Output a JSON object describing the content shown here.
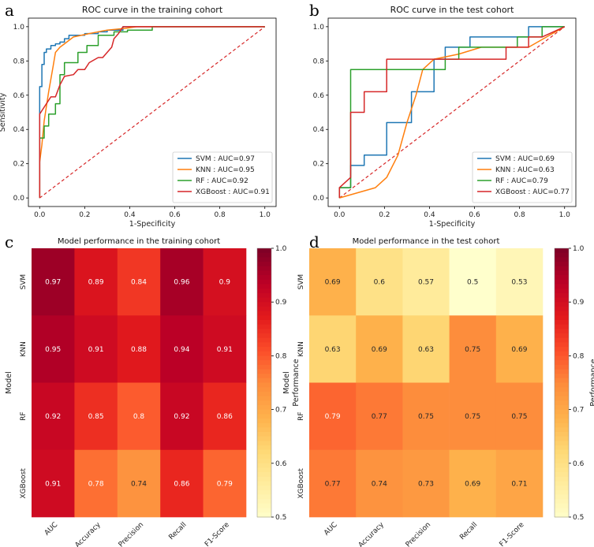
{
  "panels": {
    "a": {
      "letter": "a"
    },
    "b": {
      "letter": "b"
    },
    "c": {
      "letter": "c"
    },
    "d": {
      "letter": "d"
    }
  },
  "chart_data": [
    {
      "type": "line",
      "panel": "a",
      "title": "ROC curve in the training cohort",
      "xlabel": "1-Specificity",
      "ylabel": "Sensitivity",
      "xlim": [
        -0.05,
        1.05
      ],
      "ylim": [
        -0.05,
        1.05
      ],
      "xticks": [
        "0.0",
        "0.2",
        "0.4",
        "0.6",
        "0.8",
        "1.0"
      ],
      "yticks": [
        "0.0",
        "0.2",
        "0.4",
        "0.6",
        "0.8",
        "1.0"
      ],
      "legend_position": "bottom-right",
      "series": [
        {
          "name": "SVM",
          "label": "SVM : AUC=0.97",
          "color": "#1f77b4",
          "points": [
            [
              0,
              0
            ],
            [
              0,
              0.5
            ],
            [
              0,
              0.65
            ],
            [
              0.01,
              0.65
            ],
            [
              0.01,
              0.78
            ],
            [
              0.02,
              0.78
            ],
            [
              0.02,
              0.85
            ],
            [
              0.03,
              0.85
            ],
            [
              0.03,
              0.87
            ],
            [
              0.05,
              0.87
            ],
            [
              0.05,
              0.89
            ],
            [
              0.07,
              0.89
            ],
            [
              0.07,
              0.9
            ],
            [
              0.09,
              0.9
            ],
            [
              0.09,
              0.91
            ],
            [
              0.11,
              0.91
            ],
            [
              0.11,
              0.93
            ],
            [
              0.13,
              0.93
            ],
            [
              0.13,
              0.95
            ],
            [
              0.2,
              0.95
            ],
            [
              0.2,
              0.96
            ],
            [
              0.26,
              0.96
            ],
            [
              0.26,
              0.97
            ],
            [
              0.3,
              0.97
            ],
            [
              0.3,
              0.98
            ],
            [
              0.37,
              0.98
            ],
            [
              0.37,
              1.0
            ],
            [
              1.0,
              1.0
            ]
          ]
        },
        {
          "name": "KNN",
          "label": "KNN : AUC=0.95",
          "color": "#ff7f0e",
          "points": [
            [
              0,
              0
            ],
            [
              0,
              0.21
            ],
            [
              0.01,
              0.31
            ],
            [
              0.02,
              0.45
            ],
            [
              0.04,
              0.62
            ],
            [
              0.06,
              0.77
            ],
            [
              0.07,
              0.85
            ],
            [
              0.09,
              0.88
            ],
            [
              0.11,
              0.9
            ],
            [
              0.15,
              0.94
            ],
            [
              0.22,
              0.96
            ],
            [
              0.3,
              0.98
            ],
            [
              0.38,
              0.99
            ],
            [
              0.43,
              1.0
            ],
            [
              1.0,
              1.0
            ]
          ]
        },
        {
          "name": "RF",
          "label": "RF : AUC=0.92",
          "color": "#2ca02c",
          "points": [
            [
              0,
              0
            ],
            [
              0,
              0.35
            ],
            [
              0.02,
              0.35
            ],
            [
              0.02,
              0.42
            ],
            [
              0.04,
              0.42
            ],
            [
              0.04,
              0.49
            ],
            [
              0.07,
              0.49
            ],
            [
              0.07,
              0.55
            ],
            [
              0.09,
              0.55
            ],
            [
              0.09,
              0.72
            ],
            [
              0.11,
              0.72
            ],
            [
              0.11,
              0.79
            ],
            [
              0.17,
              0.79
            ],
            [
              0.17,
              0.85
            ],
            [
              0.21,
              0.85
            ],
            [
              0.21,
              0.89
            ],
            [
              0.26,
              0.89
            ],
            [
              0.26,
              0.95
            ],
            [
              0.33,
              0.95
            ],
            [
              0.33,
              0.97
            ],
            [
              0.39,
              0.97
            ],
            [
              0.39,
              0.98
            ],
            [
              0.5,
              0.98
            ],
            [
              0.5,
              1.0
            ],
            [
              1.0,
              1.0
            ]
          ]
        },
        {
          "name": "XGBoost",
          "label": "XGBoost : AUC=0.91",
          "color": "#d62728",
          "points": [
            [
              0,
              0
            ],
            [
              0,
              0.49
            ],
            [
              0.03,
              0.55
            ],
            [
              0.05,
              0.59
            ],
            [
              0.07,
              0.59
            ],
            [
              0.09,
              0.66
            ],
            [
              0.11,
              0.71
            ],
            [
              0.15,
              0.72
            ],
            [
              0.17,
              0.75
            ],
            [
              0.2,
              0.75
            ],
            [
              0.22,
              0.79
            ],
            [
              0.26,
              0.82
            ],
            [
              0.28,
              0.82
            ],
            [
              0.32,
              0.88
            ],
            [
              0.33,
              0.93
            ],
            [
              0.35,
              0.96
            ],
            [
              0.37,
              1.0
            ],
            [
              1.0,
              1.0
            ]
          ]
        },
        {
          "name": "Reference",
          "color": "#d62728",
          "dashed": true,
          "points": [
            [
              0,
              0
            ],
            [
              1,
              1
            ]
          ]
        }
      ]
    },
    {
      "type": "line",
      "panel": "b",
      "title": "ROC curve in the test cohort",
      "xlabel": "1-Specificity",
      "ylabel": "",
      "xlim": [
        -0.05,
        1.05
      ],
      "ylim": [
        -0.05,
        1.05
      ],
      "xticks": [
        "0.0",
        "0.2",
        "0.4",
        "0.6",
        "0.8",
        "1.0"
      ],
      "yticks": [
        "0.0",
        "0.2",
        "0.4",
        "0.6",
        "0.8",
        "1.0"
      ],
      "legend_position": "bottom-right",
      "series": [
        {
          "name": "SVM",
          "label": "SVM : AUC=0.69",
          "color": "#1f77b4",
          "points": [
            [
              0,
              0
            ],
            [
              0,
              0.06
            ],
            [
              0.05,
              0.06
            ],
            [
              0.05,
              0.19
            ],
            [
              0.11,
              0.19
            ],
            [
              0.11,
              0.25
            ],
            [
              0.21,
              0.25
            ],
            [
              0.21,
              0.44
            ],
            [
              0.32,
              0.44
            ],
            [
              0.32,
              0.62
            ],
            [
              0.42,
              0.62
            ],
            [
              0.42,
              0.81
            ],
            [
              0.47,
              0.81
            ],
            [
              0.47,
              0.88
            ],
            [
              0.58,
              0.88
            ],
            [
              0.58,
              0.94
            ],
            [
              0.84,
              0.94
            ],
            [
              0.84,
              1.0
            ],
            [
              1.0,
              1.0
            ]
          ]
        },
        {
          "name": "KNN",
          "label": "KNN : AUC=0.63",
          "color": "#ff7f0e",
          "points": [
            [
              0,
              0
            ],
            [
              0.16,
              0.06
            ],
            [
              0.21,
              0.12
            ],
            [
              0.26,
              0.25
            ],
            [
              0.3,
              0.44
            ],
            [
              0.34,
              0.6
            ],
            [
              0.37,
              0.75
            ],
            [
              0.42,
              0.81
            ],
            [
              0.53,
              0.84
            ],
            [
              0.63,
              0.88
            ],
            [
              0.84,
              0.88
            ],
            [
              1.0,
              1.0
            ]
          ]
        },
        {
          "name": "RF",
          "label": "RF : AUC=0.79",
          "color": "#2ca02c",
          "points": [
            [
              0,
              0
            ],
            [
              0,
              0.06
            ],
            [
              0.05,
              0.06
            ],
            [
              0.05,
              0.75
            ],
            [
              0.47,
              0.75
            ],
            [
              0.47,
              0.81
            ],
            [
              0.53,
              0.81
            ],
            [
              0.53,
              0.88
            ],
            [
              0.79,
              0.88
            ],
            [
              0.79,
              0.94
            ],
            [
              0.9,
              0.94
            ],
            [
              0.9,
              1.0
            ],
            [
              1.0,
              1.0
            ]
          ]
        },
        {
          "name": "XGBoost",
          "label": "XGBoost : AUC=0.77",
          "color": "#d62728",
          "points": [
            [
              0,
              0
            ],
            [
              0,
              0.06
            ],
            [
              0.05,
              0.12
            ],
            [
              0.05,
              0.5
            ],
            [
              0.11,
              0.5
            ],
            [
              0.11,
              0.62
            ],
            [
              0.21,
              0.62
            ],
            [
              0.21,
              0.81
            ],
            [
              0.74,
              0.81
            ],
            [
              0.74,
              0.88
            ],
            [
              0.84,
              0.88
            ],
            [
              0.84,
              0.94
            ],
            [
              0.9,
              0.94
            ],
            [
              1.0,
              1.0
            ]
          ]
        },
        {
          "name": "Reference",
          "color": "#d62728",
          "dashed": true,
          "points": [
            [
              0,
              0
            ],
            [
              1,
              1
            ]
          ]
        }
      ]
    },
    {
      "type": "heatmap",
      "panel": "c",
      "title": "Model performance in the training cohort",
      "xlabel": "",
      "ylabel": "Model",
      "columns": [
        "AUC",
        "Accuracy",
        "Precision",
        "Recall",
        "F1-Score"
      ],
      "rows": [
        "SVM",
        "KNN",
        "RF",
        "XGBoost"
      ],
      "values": [
        [
          0.97,
          0.89,
          0.84,
          0.96,
          0.9
        ],
        [
          0.95,
          0.91,
          0.88,
          0.94,
          0.91
        ],
        [
          0.92,
          0.85,
          0.8,
          0.92,
          0.86
        ],
        [
          0.91,
          0.78,
          0.74,
          0.86,
          0.79
        ]
      ],
      "colorbar": {
        "label": "Performance",
        "range": [
          0.5,
          1.0
        ],
        "ticks": [
          "0.5",
          "0.6",
          "0.7",
          "0.8",
          "0.9",
          "1.0"
        ],
        "colormap": "YlOrRd"
      }
    },
    {
      "type": "heatmap",
      "panel": "d",
      "title": "Model performance in the test cohort",
      "xlabel": "",
      "ylabel": "Model",
      "columns": [
        "AUC",
        "Accuracy",
        "Precision",
        "Recall",
        "F1-Score"
      ],
      "rows": [
        "SVM",
        "KNN",
        "RF",
        "XGBoost"
      ],
      "values": [
        [
          0.69,
          0.6,
          0.57,
          0.5,
          0.53
        ],
        [
          0.63,
          0.69,
          0.63,
          0.75,
          0.69
        ],
        [
          0.79,
          0.77,
          0.75,
          0.75,
          0.75
        ],
        [
          0.77,
          0.74,
          0.73,
          0.69,
          0.71
        ]
      ],
      "colorbar": {
        "label": "Performance",
        "range": [
          0.5,
          1.0
        ],
        "ticks": [
          "0.5",
          "0.6",
          "0.7",
          "0.8",
          "0.9",
          "1.0"
        ],
        "colormap": "YlOrRd"
      }
    }
  ]
}
